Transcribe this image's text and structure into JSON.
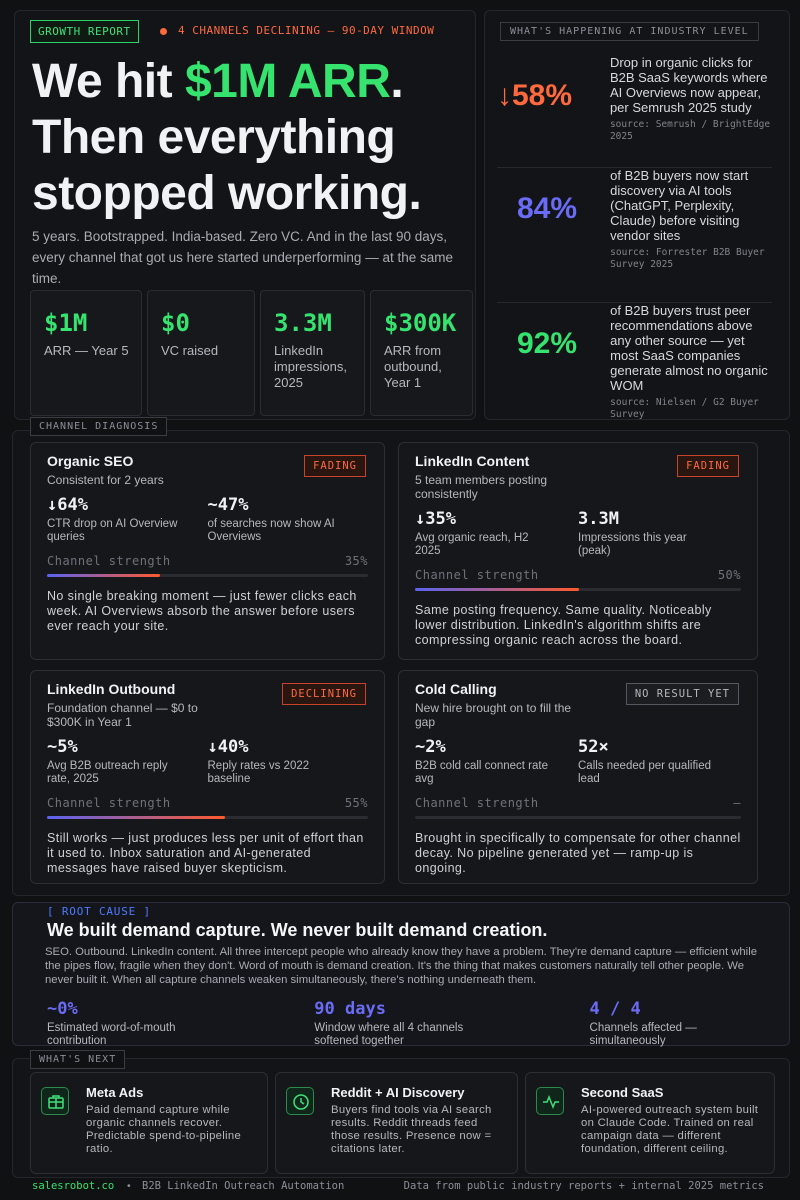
{
  "header": {
    "badge": "GROWTH REPORT",
    "alert": "4 CHANNELS DECLINING — 90-DAY WINDOW"
  },
  "hero": {
    "headline": {
      "line1_start": "We hit ",
      "line1_highlight": "$1M ARR",
      "line1_end": ".",
      "line2": "Then everything",
      "line3": "stopped working."
    },
    "intro": "5 years. Bootstrapped. India-based. Zero VC. And in the last 90 days, every channel that got us here started underperforming — at the same time.",
    "stats": [
      {
        "value": "$1M",
        "label": "ARR — Year 5"
      },
      {
        "value": "$0",
        "label": "VC raised"
      },
      {
        "value": "3.3M",
        "label": "LinkedIn impressions, 2025"
      },
      {
        "value": "$300K",
        "label": "ARR from outbound, Year 1"
      }
    ]
  },
  "industry": {
    "title": "WHAT'S HAPPENING AT INDUSTRY LEVEL",
    "items": [
      {
        "value": "↓58%",
        "text": "Drop in organic clicks for B2B SaaS keywords where AI Overviews now appear, per Semrush 2025 study",
        "source": "source: Semrush / BrightEdge 2025"
      },
      {
        "value": "84%",
        "text": "of B2B buyers now start discovery via AI tools (ChatGPT, Perplexity, Claude) before visiting vendor sites",
        "source": "source: Forrester B2B Buyer Survey 2025"
      },
      {
        "value": "92%",
        "text": "of B2B buyers trust peer recommendations above any other source — yet most SaaS companies generate almost no organic WOM",
        "source": "source: Nielsen / G2 Buyer Survey"
      }
    ]
  },
  "channels": {
    "title": "CHANNEL DIAGNOSIS",
    "strength_label": "Channel strength",
    "cards": [
      {
        "name": "Organic SEO",
        "subtitle": "Consistent for 2 years",
        "status": "FADING",
        "metrics": [
          {
            "value": "↓64%",
            "label": "CTR drop on AI Overview queries"
          },
          {
            "value": "~47%",
            "label": "of searches now show AI Overviews"
          }
        ],
        "strength": {
          "value": 35,
          "label": "35%"
        },
        "note": "No single breaking moment — just fewer clicks each week. AI Overviews absorb the answer before users ever reach your site."
      },
      {
        "name": "LinkedIn Content",
        "subtitle": "5 team members posting consistently",
        "status": "FADING",
        "metrics": [
          {
            "value": "↓35%",
            "label": "Avg organic reach, H2 2025"
          },
          {
            "value": "3.3M",
            "label": "Impressions this year (peak)"
          }
        ],
        "strength": {
          "value": 50,
          "label": "50%"
        },
        "note": "Same posting frequency. Same quality. Noticeably lower distribution. LinkedIn's algorithm shifts are compressing organic reach across the board."
      },
      {
        "name": "LinkedIn Outbound",
        "subtitle": "Foundation channel — $0 to $300K in Year 1",
        "status": "DECLINING",
        "metrics": [
          {
            "value": "~5%",
            "label": "Avg B2B outreach reply rate, 2025"
          },
          {
            "value": "↓40%",
            "label": "Reply rates vs 2022 baseline"
          }
        ],
        "strength": {
          "value": 55,
          "label": "55%"
        },
        "note": "Still works — just produces less per unit of effort than it used to. Inbox saturation and AI-generated messages have raised buyer skepticism."
      },
      {
        "name": "Cold Calling",
        "subtitle": "New hire brought on to fill the gap",
        "status": "NO RESULT YET",
        "metrics": [
          {
            "value": "~2%",
            "label": "B2B cold call connect rate avg"
          },
          {
            "value": "52×",
            "label": "Calls needed per qualified lead"
          }
        ],
        "strength": {
          "value": null,
          "label": "–"
        },
        "note": "Brought in specifically to compensate for other channel decay. No pipeline generated yet — ramp-up is ongoing."
      }
    ]
  },
  "root_cause": {
    "tag": "[ ROOT CAUSE ]",
    "headline": "We built demand capture. We never built demand creation.",
    "body": "SEO. Outbound. LinkedIn content. All three intercept people who already know they have a problem. They're demand capture — efficient while the pipes flow, fragile when they don't. Word of mouth is demand creation. It's the thing that makes customers naturally tell other people. We never built it. When all capture channels weaken simultaneously, there's nothing underneath them.",
    "stats": [
      {
        "value": "~0%",
        "label": "Estimated word-of-mouth contribution"
      },
      {
        "value": "90 days",
        "label": "Window where all 4 channels softened together"
      },
      {
        "value": "4 / 4",
        "label": "Channels affected — simultaneously"
      }
    ]
  },
  "next": {
    "title": "WHAT'S NEXT",
    "items": [
      {
        "title": "Meta Ads",
        "text": "Paid demand capture while organic channels recover. Predictable spend-to-pipeline ratio."
      },
      {
        "title": "Reddit + AI Discovery",
        "text": "Buyers find tools via AI search results. Reddit threads feed those results. Presence now = citations later."
      },
      {
        "title": "Second SaaS",
        "text": "AI-powered outreach system built on Claude Code. Trained on real campaign data — different foundation, different ceiling."
      }
    ]
  },
  "footer": {
    "site": "salesrobot.co",
    "tagline": "B2B LinkedIn Outreach Automation",
    "note": "Data from public industry reports + internal 2025 metrics"
  }
}
